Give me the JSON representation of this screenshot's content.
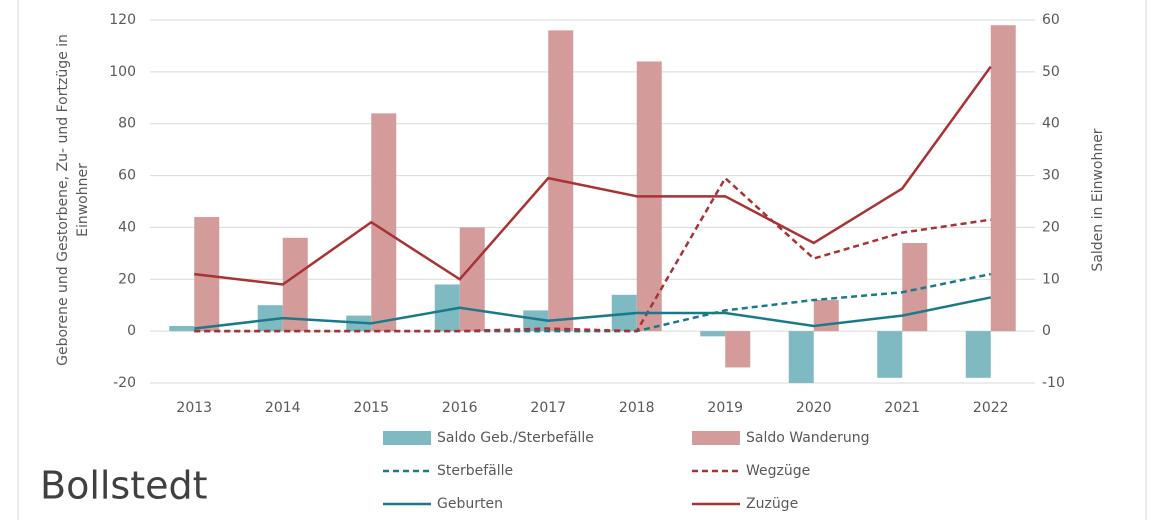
{
  "chart_data": {
    "type": "bar-line",
    "location": "Bollstedt",
    "y_label": "Geborene und Gestorbene, Zu- und Fortzüge in Einwohner",
    "y2_label": "Salden in Einwohner",
    "categories": [
      "2013",
      "2014",
      "2015",
      "2016",
      "2017",
      "2018",
      "2019",
      "2020",
      "2021",
      "2022"
    ],
    "ylim": [
      -20,
      120
    ],
    "yticks": [
      -20,
      0,
      20,
      40,
      60,
      80,
      100,
      120
    ],
    "y2lim": [
      -10,
      60
    ],
    "y2ticks": [
      -10,
      0,
      10,
      20,
      30,
      40,
      50,
      60
    ],
    "series": [
      {
        "name": "Saldo Geb./Sterbefälle",
        "type": "bar",
        "axis": "y2",
        "color": "#7fb9c1",
        "values": [
          1,
          5,
          3,
          9,
          4,
          7,
          -1,
          -10,
          -9,
          -9
        ]
      },
      {
        "name": "Saldo Wanderung",
        "type": "bar",
        "axis": "y2",
        "color": "#d49b9b",
        "values": [
          22,
          18,
          42,
          20,
          58,
          52,
          -7,
          6,
          17,
          59
        ]
      },
      {
        "name": "Sterbefälle",
        "type": "line",
        "dash": true,
        "color": "#1a7a8a",
        "values": [
          0,
          0,
          0,
          0,
          0,
          0,
          8,
          12,
          15,
          22
        ]
      },
      {
        "name": "Wegzüge",
        "type": "line",
        "dash": true,
        "color": "#a83234",
        "values": [
          0,
          0,
          0,
          0,
          1,
          0,
          59,
          28,
          38,
          43
        ]
      },
      {
        "name": "Geburten",
        "type": "line",
        "dash": false,
        "color": "#1a7a8a",
        "values": [
          1,
          5,
          3,
          9,
          4,
          7,
          7,
          2,
          6,
          13
        ]
      },
      {
        "name": "Zuzüge",
        "type": "line",
        "dash": false,
        "color": "#a83234",
        "values": [
          22,
          18,
          42,
          20,
          59,
          52,
          52,
          34,
          55,
          102
        ]
      }
    ]
  }
}
